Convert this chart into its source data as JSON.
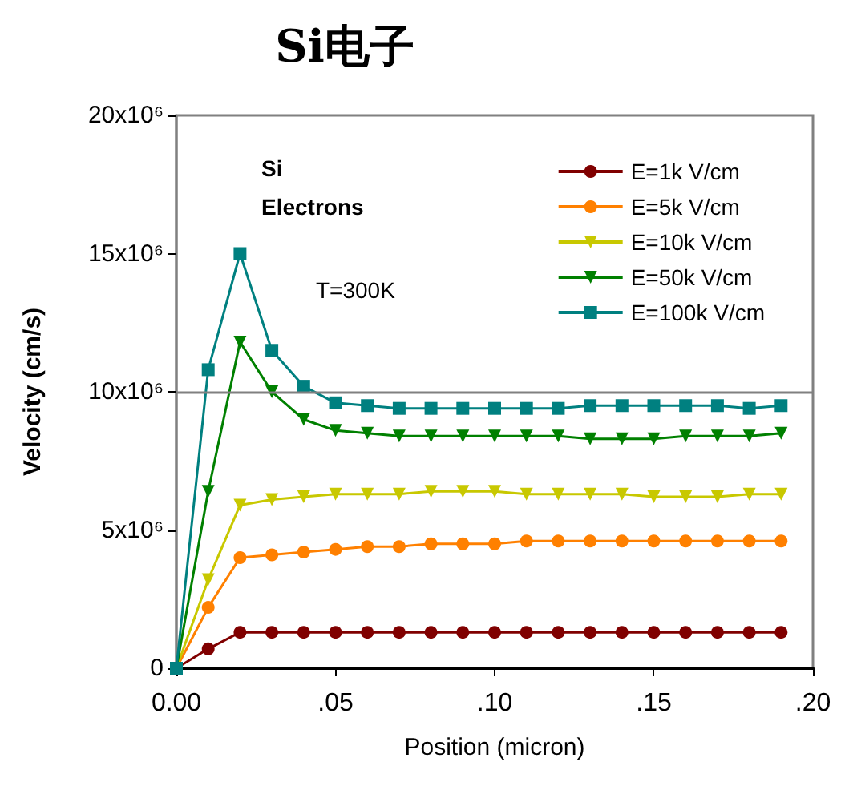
{
  "chart_data": {
    "type": "line",
    "title": "Si电子",
    "xlabel": "Position (micron)",
    "ylabel": "Velocity (cm/s)",
    "annotations": [
      "Si",
      "Electrons",
      "T=300K"
    ],
    "x": [
      0,
      0.01,
      0.02,
      0.03,
      0.04,
      0.05,
      0.06,
      0.07,
      0.08,
      0.09,
      0.1,
      0.11,
      0.12,
      0.13,
      0.14,
      0.15,
      0.16,
      0.17,
      0.18,
      0.19
    ],
    "series": [
      {
        "name": "E=1k V/cm",
        "color": "#800000",
        "marker": "circle",
        "values": [
          0,
          700000,
          1300000,
          1300000,
          1300000,
          1300000,
          1300000,
          1300000,
          1300000,
          1300000,
          1300000,
          1300000,
          1300000,
          1300000,
          1300000,
          1300000,
          1300000,
          1300000,
          1300000,
          1300000
        ]
      },
      {
        "name": "E=5k V/cm",
        "color": "#ff8000",
        "marker": "circle",
        "values": [
          0,
          2200000,
          4000000,
          4100000,
          4200000,
          4300000,
          4400000,
          4400000,
          4500000,
          4500000,
          4500000,
          4600000,
          4600000,
          4600000,
          4600000,
          4600000,
          4600000,
          4600000,
          4600000,
          4600000
        ]
      },
      {
        "name": "E=10k V/cm",
        "color": "#c8c800",
        "marker": "triangle",
        "values": [
          0,
          3200000,
          5900000,
          6100000,
          6200000,
          6300000,
          6300000,
          6300000,
          6400000,
          6400000,
          6400000,
          6300000,
          6300000,
          6300000,
          6300000,
          6200000,
          6200000,
          6200000,
          6300000,
          6300000
        ]
      },
      {
        "name": "E=50k V/cm",
        "color": "#008000",
        "marker": "triangle",
        "values": [
          0,
          6400000,
          11800000,
          10000000,
          9000000,
          8600000,
          8500000,
          8400000,
          8400000,
          8400000,
          8400000,
          8400000,
          8400000,
          8300000,
          8300000,
          8300000,
          8400000,
          8400000,
          8400000,
          8500000
        ]
      },
      {
        "name": "E=100k V/cm",
        "color": "#008080",
        "marker": "square",
        "values": [
          0,
          10800000,
          15000000,
          11500000,
          10200000,
          9600000,
          9500000,
          9400000,
          9400000,
          9400000,
          9400000,
          9400000,
          9400000,
          9500000,
          9500000,
          9500000,
          9500000,
          9500000,
          9400000,
          9500000
        ]
      }
    ],
    "xlim": [
      0,
      0.2
    ],
    "xticks": [
      {
        "value": 0,
        "label": "0.00"
      },
      {
        "value": 0.05,
        "label": ".05"
      },
      {
        "value": 0.1,
        "label": ".10"
      },
      {
        "value": 0.15,
        "label": ".15"
      },
      {
        "value": 0.2,
        "label": ".20"
      }
    ],
    "ylim": [
      0,
      20000000
    ],
    "yticks": [
      0,
      {
        "value": 5000000,
        "label": "5x10⁶"
      },
      {
        "value": 10000000,
        "label": "10x10⁶"
      },
      {
        "value": 15000000,
        "label": "15x10⁶"
      },
      {
        "value": 20000000,
        "label": "20x10⁶"
      }
    ],
    "ref_lines": [
      {
        "axis": "y",
        "value": 10000000,
        "color": "#808080"
      }
    ],
    "grid": false,
    "legend": "top right",
    "line_style": "solid"
  }
}
